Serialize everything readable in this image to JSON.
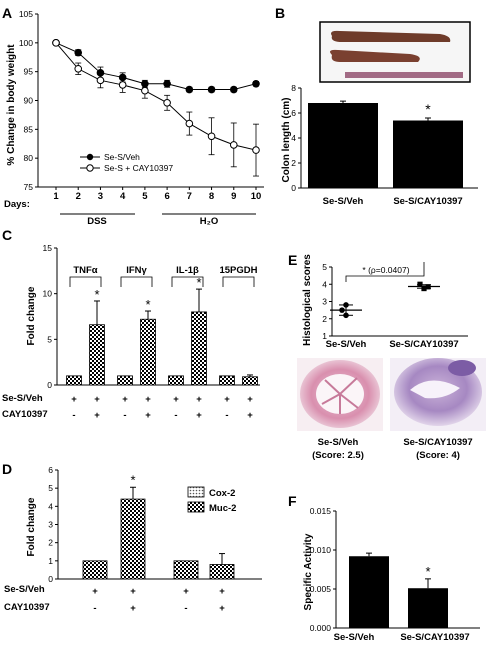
{
  "panels": {
    "A": {
      "letter": "A",
      "ylabel": "% Change in body weight",
      "days_label": "Days:",
      "legend": [
        "Se-S/Veh",
        "Se-S + CAY10397"
      ],
      "phases": [
        "DSS",
        "H₂O"
      ],
      "yticks": [
        "75",
        "80",
        "85",
        "90",
        "95",
        "100",
        "105"
      ],
      "xticks": [
        "1",
        "2",
        "3",
        "4",
        "5",
        "6",
        "7",
        "8",
        "9",
        "10"
      ]
    },
    "B": {
      "letter": "B",
      "ylabel": "Colon length (cm)",
      "yticks": [
        "0",
        "2",
        "4",
        "6",
        "8"
      ],
      "categories": [
        "Se-S/Veh",
        "Se-S/CAY10397"
      ],
      "star": "*"
    },
    "C": {
      "letter": "C",
      "ylabel": "Fold change",
      "yticks": [
        "0",
        "5",
        "10",
        "15"
      ],
      "genes": [
        "TNFα",
        "IFNγ",
        "IL-1β",
        "15PGDH"
      ],
      "row_labels": [
        "Se-S/Veh",
        "CAY10397"
      ],
      "row1": [
        "+",
        "+",
        "+",
        "+",
        "+",
        "+",
        "+",
        "+"
      ],
      "row2": [
        "-",
        "+",
        "-",
        "+",
        "-",
        "+",
        "-",
        "+"
      ],
      "stars": [
        "*",
        "*",
        "*"
      ]
    },
    "D": {
      "letter": "D",
      "ylabel": "Fold change",
      "yticks": [
        "0",
        "1",
        "2",
        "3",
        "4",
        "5",
        "6"
      ],
      "legend": [
        "Cox-2",
        "Muc-2"
      ],
      "row_labels": [
        "Se-S/Veh",
        "CAY10397"
      ],
      "row1": [
        "+",
        "+",
        "+",
        "+"
      ],
      "row2": [
        "-",
        "+",
        "-",
        "+"
      ],
      "star": "*"
    },
    "E": {
      "letter": "E",
      "ylabel": "Histological scores",
      "yticks": [
        "1",
        "2",
        "3",
        "4",
        "5"
      ],
      "categories": [
        "Se-S/Veh",
        "Se-S/CAY10397"
      ],
      "annotation": "* (ρ=0.0407)",
      "image_captions": [
        {
          "name": "Se-S/Veh",
          "score": "(Score: 2.5)"
        },
        {
          "name": "Se-S/CAY10397",
          "score": "(Score: 4)"
        }
      ]
    },
    "F": {
      "letter": "F",
      "ylabel": "Specific Activity",
      "yticks": [
        "0.000",
        "0.005",
        "0.010",
        "0.015"
      ],
      "categories": [
        "Se-S/Veh",
        "Se-S/CAY10397"
      ],
      "star": "*"
    }
  },
  "chart_data": [
    {
      "panel": "A",
      "type": "line",
      "x": [
        1,
        2,
        3,
        4,
        5,
        6,
        7,
        8,
        9,
        10
      ],
      "series": [
        {
          "name": "Se-S/Veh",
          "values": [
            100,
            98.3,
            94.8,
            94.0,
            92.9,
            92.9,
            91.9,
            91.9,
            91.9,
            92.9
          ],
          "errors": [
            0,
            0.5,
            1.0,
            0.8,
            0.6,
            0.6,
            0.4,
            0.4,
            0.4,
            0.4
          ]
        },
        {
          "name": "Se-S + CAY10397",
          "values": [
            100,
            95.5,
            93.5,
            92.7,
            91.7,
            89.6,
            86.0,
            83.8,
            82.3,
            81.4
          ],
          "errors": [
            0,
            1.0,
            1.3,
            1.3,
            1.3,
            1.3,
            2.0,
            3.2,
            3.8,
            4.5
          ]
        }
      ],
      "ylim": [
        75,
        105
      ],
      "xlabel": "Days:"
    },
    {
      "panel": "B",
      "type": "bar",
      "categories": [
        "Se-S/Veh",
        "Se-S/CAY10397"
      ],
      "values": [
        6.8,
        5.4
      ],
      "errors": [
        0.15,
        0.2
      ],
      "ylim": [
        0,
        8
      ],
      "ylabel": "Colon length (cm)"
    },
    {
      "panel": "C",
      "type": "bar",
      "categories": [
        "TNFα",
        "IFNγ",
        "IL-1β",
        "15PGDH"
      ],
      "series": [
        {
          "values": [
            1,
            1,
            1,
            1
          ],
          "errors": [
            0,
            0,
            0,
            0
          ]
        },
        {
          "values": [
            6.6,
            7.2,
            8.0,
            0.9
          ],
          "errors": [
            2.6,
            0.9,
            2.5,
            0.2
          ]
        }
      ],
      "ylim": [
        0,
        15
      ],
      "ylabel": "Fold change"
    },
    {
      "panel": "D",
      "type": "bar",
      "categories": [
        "Cox-2",
        "Muc-2"
      ],
      "series": [
        {
          "values": [
            1.0,
            1.0
          ],
          "errors": [
            0,
            0
          ]
        },
        {
          "values": [
            4.4,
            0.8
          ],
          "errors": [
            0.65,
            0.6
          ]
        }
      ],
      "ylim": [
        0,
        6
      ],
      "ylabel": "Fold change"
    },
    {
      "panel": "E",
      "type": "scatter",
      "categories": [
        "Se-S/Veh",
        "Se-S/CAY10397"
      ],
      "points": [
        [
          2.8,
          2.5,
          2.2
        ],
        [
          4.0,
          3.85,
          3.75
        ]
      ],
      "means": [
        2.5,
        3.87
      ],
      "errors": [
        0.3,
        0.1
      ],
      "ylim": [
        1,
        5
      ],
      "ylabel": "Histological scores"
    },
    {
      "panel": "F",
      "type": "bar",
      "categories": [
        "Se-S/Veh",
        "Se-S/CAY10397"
      ],
      "values": [
        0.0092,
        0.0051
      ],
      "errors": [
        0.0004,
        0.0012
      ],
      "ylim": [
        0,
        0.015
      ],
      "ylabel": "Specific Activity"
    }
  ]
}
